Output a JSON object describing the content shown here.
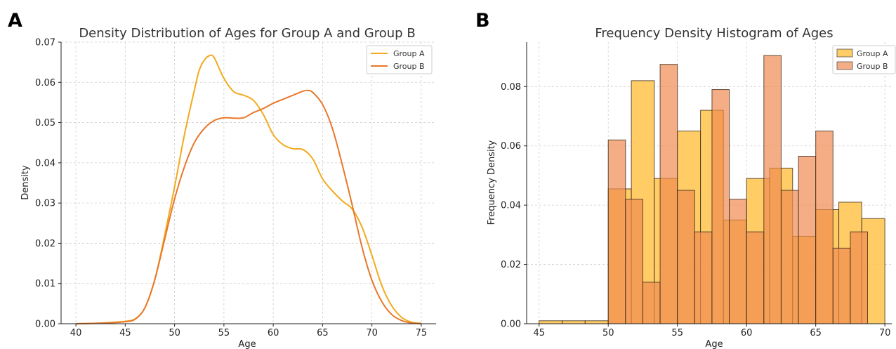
{
  "chart_data": [
    {
      "panel": "A",
      "type": "line",
      "title": "Density Distribution of Ages for Group A and Group B",
      "xlabel": "Age",
      "ylabel": "Density",
      "xlim": [
        38.5,
        76.5
      ],
      "ylim": [
        0,
        0.07
      ],
      "xticks": [
        40,
        45,
        50,
        55,
        60,
        65,
        70,
        75
      ],
      "yticks": [
        0.0,
        0.01,
        0.02,
        0.03,
        0.04,
        0.05,
        0.06,
        0.07
      ],
      "ytick_labels": [
        "0.00",
        "0.01",
        "0.02",
        "0.03",
        "0.04",
        "0.05",
        "0.06",
        "0.07"
      ],
      "grid": true,
      "legend_position": "top-right",
      "series": [
        {
          "name": "Group A",
          "color": "#F2AA1C",
          "x": [
            40,
            42,
            44,
            45,
            46,
            47,
            48,
            49,
            50,
            51,
            52,
            52.5,
            53,
            53.5,
            54,
            55,
            56,
            57,
            58,
            59,
            60,
            61,
            62,
            63,
            64,
            65,
            66,
            67,
            68,
            69,
            70,
            71,
            72,
            73,
            74,
            75
          ],
          "y": [
            0.0,
            0.0001,
            0.0004,
            0.0006,
            0.0012,
            0.004,
            0.011,
            0.022,
            0.034,
            0.047,
            0.058,
            0.063,
            0.0655,
            0.0666,
            0.0662,
            0.061,
            0.0577,
            0.0568,
            0.0555,
            0.052,
            0.047,
            0.0445,
            0.0435,
            0.0433,
            0.041,
            0.036,
            0.033,
            0.0305,
            0.0285,
            0.024,
            0.017,
            0.0095,
            0.0045,
            0.0016,
            0.0004,
            0.0001
          ]
        },
        {
          "name": "Group B",
          "color": "#E8782A",
          "x": [
            40,
            42,
            44,
            45,
            46,
            47,
            48,
            49,
            50,
            51,
            52,
            53,
            54,
            55,
            56,
            57,
            58,
            59,
            60,
            61,
            62,
            63,
            63.5,
            64,
            65,
            66,
            67,
            68,
            69,
            70,
            71,
            72,
            73,
            74,
            75
          ],
          "y": [
            0.0,
            0.0001,
            0.0003,
            0.0005,
            0.0011,
            0.004,
            0.011,
            0.021,
            0.031,
            0.039,
            0.045,
            0.0485,
            0.0505,
            0.0512,
            0.0511,
            0.0512,
            0.0525,
            0.0535,
            0.0548,
            0.0558,
            0.0568,
            0.0578,
            0.058,
            0.0575,
            0.0545,
            0.0485,
            0.0395,
            0.0295,
            0.019,
            0.0108,
            0.0055,
            0.0023,
            0.0008,
            0.0002,
            0.0
          ]
        }
      ]
    },
    {
      "panel": "B",
      "type": "bar",
      "title": "Frequency Density Histogram of Ages",
      "xlabel": "Age",
      "ylabel": "Frequency Density",
      "xlim": [
        44.1,
        70.5
      ],
      "ylim": [
        0,
        0.095
      ],
      "xticks": [
        45,
        50,
        55,
        60,
        65,
        70
      ],
      "yticks": [
        0.0,
        0.02,
        0.04,
        0.06,
        0.08
      ],
      "ytick_labels": [
        "0.00",
        "0.02",
        "0.04",
        "0.06",
        "0.08"
      ],
      "grid": true,
      "legend_position": "top-right",
      "series": [
        {
          "name": "Group A",
          "color": "#FFC34A",
          "opacity": 0.85,
          "bin_edges": [
            45,
            46.67,
            48.33,
            50,
            51.67,
            53.33,
            55,
            56.67,
            58.33,
            60,
            61.67,
            63.33,
            65,
            66.67,
            68.33,
            70
          ],
          "values": [
            0.001,
            0.001,
            0.001,
            0.0455,
            0.082,
            0.049,
            0.065,
            0.072,
            0.035,
            0.049,
            0.0525,
            0.0295,
            0.0385,
            0.041,
            0.0355
          ]
        },
        {
          "name": "Group B",
          "color": "#F08A50",
          "opacity": 0.7,
          "bin_edges": [
            50,
            51.25,
            52.5,
            53.75,
            55,
            56.25,
            57.5,
            58.75,
            60,
            61.25,
            62.5,
            63.75,
            65,
            66.25,
            67.5,
            68.75,
            70
          ],
          "values": [
            0.062,
            0.042,
            0.014,
            0.0875,
            0.045,
            0.031,
            0.079,
            0.042,
            0.031,
            0.0905,
            0.045,
            0.0565,
            0.065,
            0.0255,
            0.031,
            0.0
          ]
        }
      ]
    }
  ]
}
